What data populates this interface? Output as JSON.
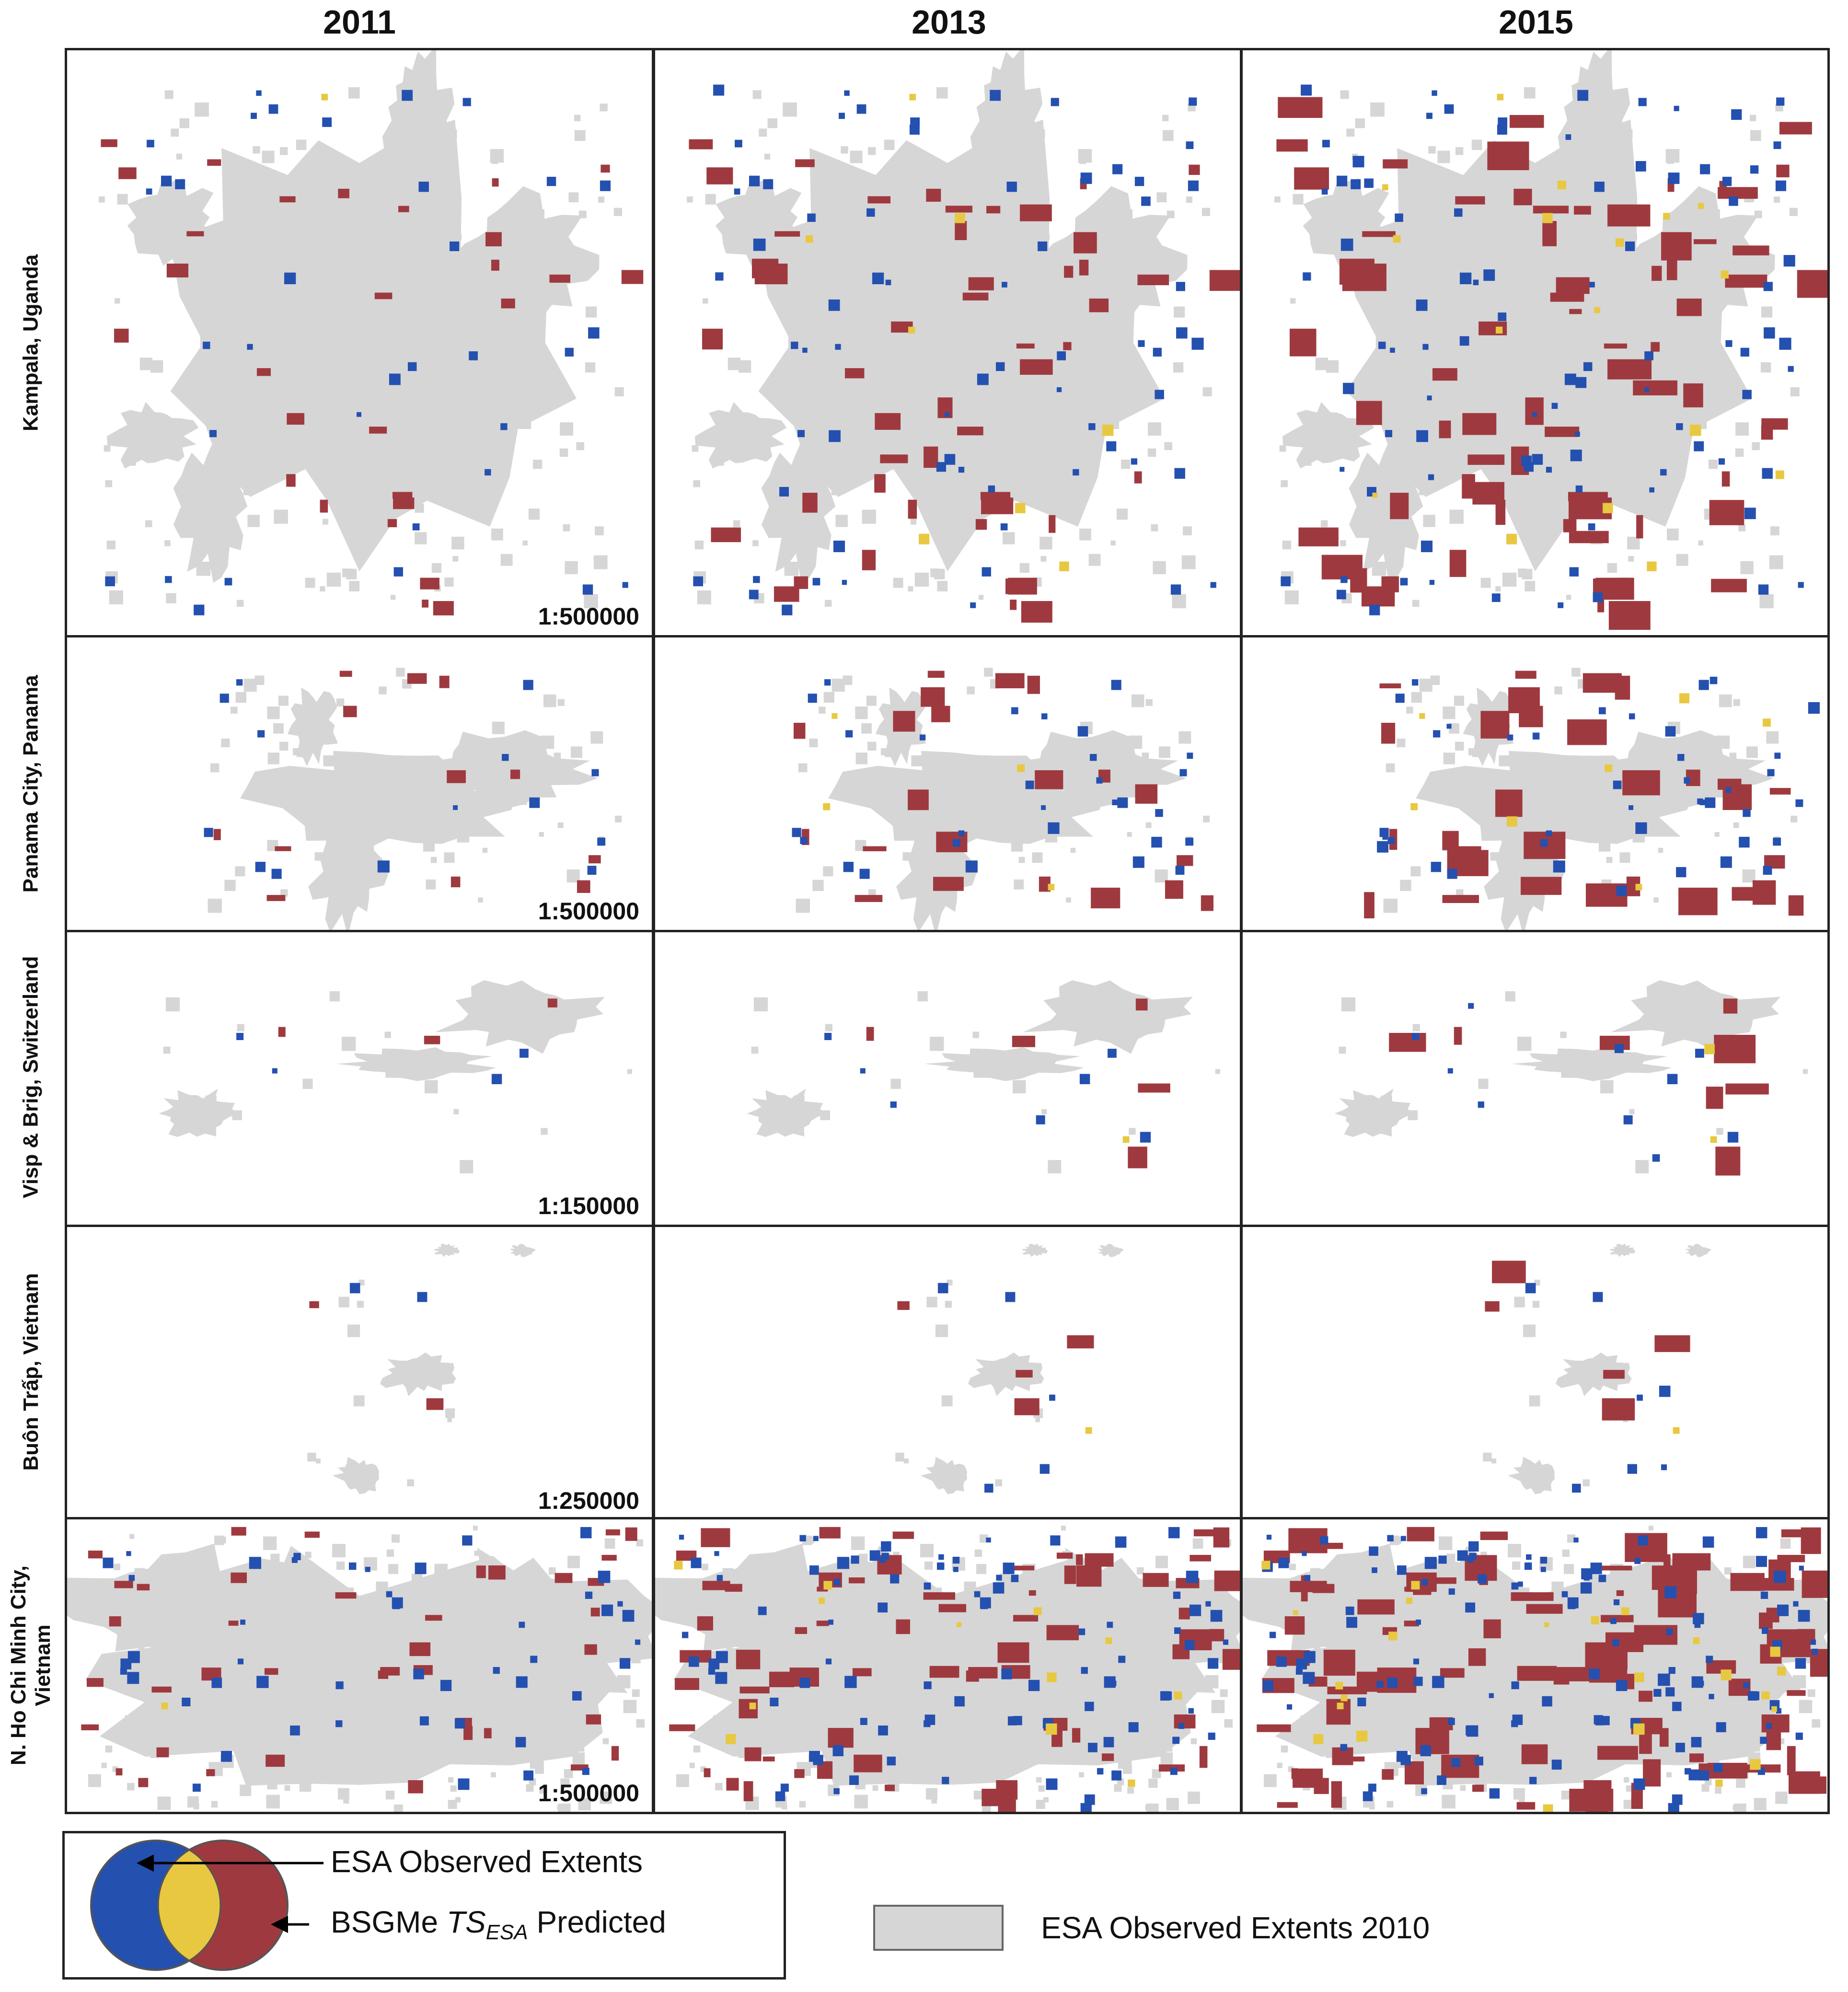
{
  "columns": [
    "2011",
    "2013",
    "2015"
  ],
  "rows": [
    {
      "label": [
        "Kampala, Uganda"
      ],
      "scale": "1:500000"
    },
    {
      "label": [
        "Panama City, Panama"
      ],
      "scale": "1:500000"
    },
    {
      "label": [
        "Visp & Brig, Switzerland"
      ],
      "scale": "1:150000"
    },
    {
      "label": [
        "Buôn Trấp, Vietnam"
      ],
      "scale": "1:250000"
    },
    {
      "label": [
        "N. Ho Chi Minh City,",
        "Vietnam"
      ],
      "scale": "1:500000"
    }
  ],
  "legend": {
    "observed": "ESA Observed Extents",
    "predicted_prefix": "BSGMe ",
    "predicted_ts": "TS",
    "predicted_sub": "ESA",
    "predicted_suffix": " Predicted",
    "baseline": "ESA Observed Extents 2010"
  },
  "colors": {
    "baseline_gray": "#d6d6d6",
    "observed_blue": "#2450b0",
    "predicted_red": "#9e3a3f",
    "overlap_yellow": "#e8c840"
  }
}
